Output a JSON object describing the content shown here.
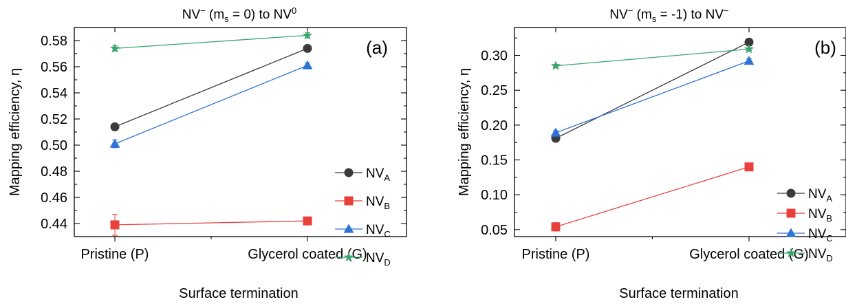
{
  "chart_data": [
    {
      "type": "line",
      "panel_label": "(a)",
      "title_parts": {
        "pre": "NV",
        "sup1": "−",
        "mid": " (m",
        "sub": "s",
        "post": " = 0) to NV",
        "sup2": "0"
      },
      "xlabel": "Surface termination",
      "ylabel": "Mapping efficiency, η",
      "categories": [
        "Pristine (P)",
        "Glycerol coated (G)"
      ],
      "ylim": [
        0.43,
        0.59
      ],
      "yticks": [
        "0.44",
        "0.46",
        "0.48",
        "0.50",
        "0.52",
        "0.54",
        "0.56",
        "0.58"
      ],
      "yticks_values": [
        0.44,
        0.46,
        0.48,
        0.5,
        0.52,
        0.54,
        0.56,
        0.58
      ],
      "legend_position": "right",
      "series": [
        {
          "name": "NV",
          "sub": "A",
          "marker": "circle",
          "color": "#3a3a3a",
          "values": [
            0.514,
            0.574
          ],
          "errors": [
            0.002,
            0.002
          ]
        },
        {
          "name": "NV",
          "sub": "B",
          "marker": "square",
          "color": "#e8413c",
          "values": [
            0.439,
            0.442
          ],
          "errors": [
            0.008,
            0.002
          ]
        },
        {
          "name": "NV",
          "sub": "C",
          "marker": "triangle",
          "color": "#2f73d6",
          "values": [
            0.501,
            0.561
          ],
          "errors": [
            0.003,
            0.002
          ]
        },
        {
          "name": "NV",
          "sub": "D",
          "marker": "star",
          "color": "#3aa66b",
          "values": [
            0.574,
            0.584
          ],
          "errors": [
            0.002,
            0.002
          ]
        }
      ]
    },
    {
      "type": "line",
      "panel_label": "(b)",
      "title_parts": {
        "pre": "NV",
        "sup1": "−",
        "mid": " (m",
        "sub": "s",
        "post": " = -1) to NV",
        "sup2": "−"
      },
      "xlabel": "Surface termination",
      "ylabel": "Mapping efficiency, η",
      "categories": [
        "Pristine (P)",
        "Glycerol coated (G)"
      ],
      "ylim": [
        0.04,
        0.34
      ],
      "yticks": [
        "0.05",
        "0.10",
        "0.15",
        "0.20",
        "0.25",
        "0.30"
      ],
      "yticks_values": [
        0.05,
        0.1,
        0.15,
        0.2,
        0.25,
        0.3
      ],
      "legend_position": "right",
      "series": [
        {
          "name": "NV",
          "sub": "A",
          "marker": "circle",
          "color": "#3a3a3a",
          "values": [
            0.181,
            0.319
          ],
          "errors": [
            0.003,
            0.003
          ]
        },
        {
          "name": "NV",
          "sub": "B",
          "marker": "square",
          "color": "#e8413c",
          "values": [
            0.054,
            0.14
          ],
          "errors": [
            0.006,
            0.003
          ]
        },
        {
          "name": "NV",
          "sub": "C",
          "marker": "triangle",
          "color": "#2f73d6",
          "values": [
            0.189,
            0.292
          ],
          "errors": [
            0.003,
            0.003
          ]
        },
        {
          "name": "NV",
          "sub": "D",
          "marker": "star",
          "color": "#3aa66b",
          "values": [
            0.285,
            0.309
          ],
          "errors": [
            0.002,
            0.002
          ]
        }
      ]
    }
  ]
}
